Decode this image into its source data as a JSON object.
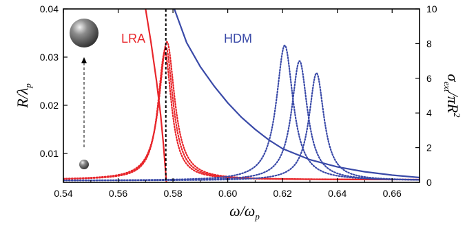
{
  "chart_data": {
    "type": "line",
    "x": {
      "lim": [
        0.54,
        0.67
      ],
      "ticks": [
        0.54,
        0.56,
        0.58,
        0.6,
        0.62,
        0.64,
        0.66
      ],
      "tick_labels": [
        "0.54",
        "0.56",
        "0.58",
        "0.60",
        "0.62",
        "0.64",
        "0.66"
      ],
      "label_main": "ω/ω",
      "label_sub": "p"
    },
    "y_left": {
      "lim": [
        0.004,
        0.04
      ],
      "ticks": [
        0.01,
        0.02,
        0.03,
        0.04
      ],
      "tick_labels": [
        "0.01",
        "0.02",
        "0.03",
        "0.04"
      ],
      "label_main": "R/λ",
      "label_sub": "p"
    },
    "y_right": {
      "lim": [
        0,
        10
      ],
      "ticks": [
        0,
        2,
        4,
        6,
        8,
        10
      ],
      "tick_labels": [
        "0",
        "2",
        "4",
        "6",
        "8",
        "10"
      ],
      "label_sigma": "σ",
      "label_sub": "ext",
      "label_rest": "/πR",
      "label_sup": "2"
    },
    "labels": {
      "lra": "LRA",
      "hdm": "HDM"
    },
    "colors": {
      "lra": "#e8262b",
      "hdm": "#3a4aa8",
      "axis": "#000000"
    },
    "vertical_line_x": 0.5774,
    "series": [
      {
        "model": "LRA",
        "style": "solid",
        "axis": "left",
        "type": "resonance-vs-size",
        "x": [
          0.57,
          0.572,
          0.574,
          0.5755,
          0.5765,
          0.5772,
          0.5776
        ],
        "y": [
          0.04,
          0.033,
          0.025,
          0.018,
          0.012,
          0.007,
          0.004
        ]
      },
      {
        "model": "HDM",
        "style": "solid",
        "axis": "left",
        "type": "resonance-vs-size",
        "x": [
          0.5805,
          0.585,
          0.59,
          0.595,
          0.6,
          0.605,
          0.61,
          0.615,
          0.62,
          0.63,
          0.64,
          0.65,
          0.66,
          0.67
        ],
        "y": [
          0.04,
          0.033,
          0.028,
          0.024,
          0.0205,
          0.0175,
          0.015,
          0.0128,
          0.011,
          0.0087,
          0.0072,
          0.0062,
          0.0055,
          0.005
        ]
      },
      {
        "model": "LRA",
        "style": "dotted",
        "axis": "right",
        "type": "lorentzian",
        "x0": 0.577,
        "peak": 7.5,
        "width": 0.003,
        "base": 0.15
      },
      {
        "model": "LRA",
        "style": "dotted",
        "axis": "right",
        "type": "lorentzian",
        "x0": 0.5774,
        "peak": 7.8,
        "width": 0.0032,
        "base": 0.15
      },
      {
        "model": "LRA",
        "style": "dotted",
        "axis": "right",
        "type": "lorentzian",
        "x0": 0.5778,
        "peak": 8.1,
        "width": 0.0034,
        "base": 0.15
      },
      {
        "model": "HDM",
        "style": "dotted",
        "axis": "right",
        "type": "lorentzian",
        "x0": 0.6208,
        "peak": 7.9,
        "width": 0.0037,
        "base": 0.1
      },
      {
        "model": "HDM",
        "style": "dotted",
        "axis": "right",
        "type": "lorentzian",
        "x0": 0.6262,
        "peak": 7.0,
        "width": 0.0035,
        "base": 0.1
      },
      {
        "model": "HDM",
        "style": "dotted",
        "axis": "right",
        "type": "lorentzian",
        "x0": 0.6324,
        "peak": 6.3,
        "width": 0.0033,
        "base": 0.1
      }
    ]
  }
}
